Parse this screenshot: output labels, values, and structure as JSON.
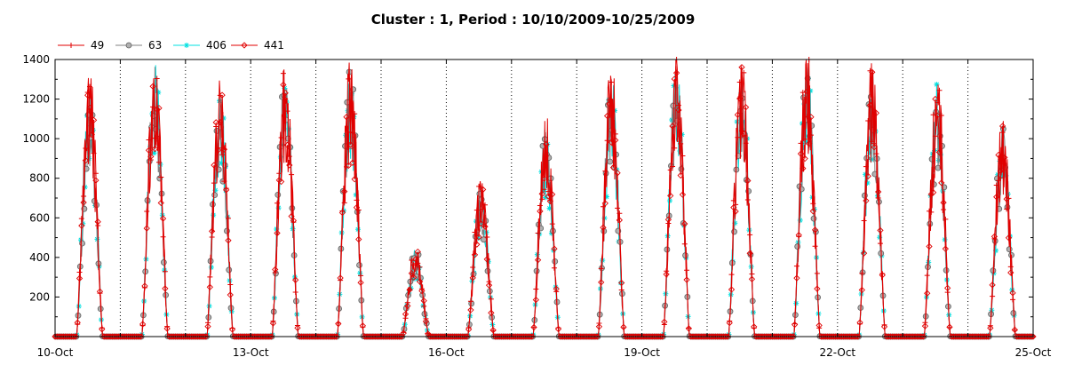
{
  "chart_data": {
    "type": "line",
    "title": "Cluster : 1, Period : 10/10/2009-10/25/2009",
    "xlabel": "",
    "ylabel": "",
    "ylim": [
      0,
      1400
    ],
    "y_ticks": [
      200,
      400,
      600,
      800,
      1000,
      1200,
      1400
    ],
    "x_range_days": [
      0,
      15
    ],
    "x_tick_labels": [
      "10-Oct",
      "13-Oct",
      "16-Oct",
      "19-Oct",
      "22-Oct",
      "25-Oct"
    ],
    "x_tick_days": [
      0,
      3,
      6,
      9,
      12,
      15
    ],
    "grid": "vertical dotted at each day",
    "legend_position": "top-left",
    "series": [
      {
        "name": "49",
        "color": "#e00000",
        "marker": "plus"
      },
      {
        "name": "63",
        "color": "#808080",
        "marker": "circle"
      },
      {
        "name": "406",
        "color": "#00e0e0",
        "marker": "star"
      },
      {
        "name": "441",
        "color": "#e00000",
        "marker": "diamond"
      }
    ],
    "daily_peaks": [
      {
        "date": "10-Oct",
        "peak": 1300
      },
      {
        "date": "11-Oct",
        "peak": 1390
      },
      {
        "date": "12-Oct",
        "peak": 1280
      },
      {
        "date": "13-Oct",
        "peak": 1360
      },
      {
        "date": "14-Oct",
        "peak": 1370
      },
      {
        "date": "15-Oct",
        "peak": 450
      },
      {
        "date": "16-Oct",
        "peak": 780
      },
      {
        "date": "17-Oct",
        "peak": 1080
      },
      {
        "date": "18-Oct",
        "peak": 1340
      },
      {
        "date": "19-Oct",
        "peak": 1400
      },
      {
        "date": "20-Oct",
        "peak": 1380
      },
      {
        "date": "21-Oct",
        "peak": 1400
      },
      {
        "date": "22-Oct",
        "peak": 1340
      },
      {
        "date": "23-Oct",
        "peak": 1290
      },
      {
        "date": "24-Oct",
        "peak": 1080
      }
    ]
  }
}
